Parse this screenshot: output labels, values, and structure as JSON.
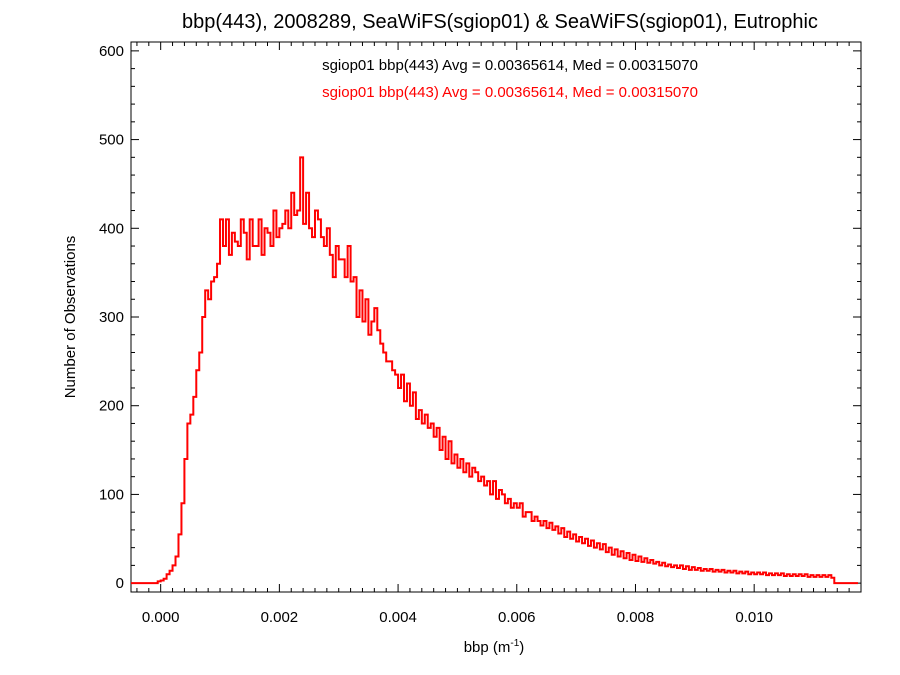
{
  "chart_data": {
    "type": "histogram",
    "title": "bbp(443), 2008289, SeaWiFS(sgiop01) & SeaWiFS(sgiop01), Eutrophic",
    "xlabel_main": "bbp (m",
    "xlabel_sup": "-1",
    "xlabel_end": ")",
    "ylabel": "Number of Observations",
    "xlim": [
      -0.0005,
      0.0118
    ],
    "ylim": [
      -10,
      610
    ],
    "x_ticks": [
      0.0,
      0.002,
      0.004,
      0.006,
      0.008,
      0.01
    ],
    "x_tick_labels": [
      "0.000",
      "0.002",
      "0.004",
      "0.006",
      "0.008",
      "0.010"
    ],
    "y_ticks": [
      0,
      100,
      200,
      300,
      400,
      500,
      600
    ],
    "y_tick_labels": [
      "0",
      "100",
      "200",
      "300",
      "400",
      "500",
      "600"
    ],
    "grid": false,
    "series": [
      {
        "name": "sgiop01 bbp(443) Avg = 0.00365614, Med = 0.00315070",
        "color": "#000000"
      },
      {
        "name": "sgiop01 bbp(443) Avg = 0.00365614, Med = 0.00315070",
        "color": "#ff0000",
        "bin_width": 5e-05,
        "bin_start": -0.0005,
        "counts": [
          0,
          0,
          0,
          0,
          0,
          0,
          0,
          0,
          0,
          2,
          3,
          5,
          10,
          14,
          20,
          30,
          55,
          90,
          140,
          180,
          190,
          210,
          240,
          260,
          300,
          330,
          320,
          340,
          345,
          360,
          410,
          380,
          410,
          370,
          395,
          385,
          380,
          410,
          395,
          365,
          410,
          380,
          380,
          410,
          370,
          400,
          395,
          380,
          420,
          390,
          400,
          405,
          420,
          400,
          440,
          415,
          420,
          480,
          405,
          440,
          400,
          390,
          420,
          410,
          390,
          380,
          400,
          370,
          345,
          380,
          365,
          365,
          345,
          380,
          340,
          345,
          300,
          330,
          295,
          320,
          280,
          295,
          310,
          285,
          270,
          260,
          250,
          250,
          240,
          235,
          220,
          235,
          205,
          225,
          200,
          215,
          185,
          195,
          180,
          190,
          175,
          180,
          165,
          175,
          150,
          165,
          140,
          160,
          135,
          145,
          130,
          140,
          125,
          135,
          120,
          130,
          125,
          115,
          120,
          110,
          115,
          100,
          115,
          95,
          105,
          100,
          90,
          95,
          85,
          90,
          85,
          90,
          75,
          80,
          80,
          70,
          75,
          70,
          65,
          70,
          62,
          68,
          60,
          64,
          56,
          62,
          52,
          58,
          50,
          55,
          47,
          52,
          45,
          50,
          42,
          48,
          40,
          45,
          38,
          44,
          35,
          40,
          32,
          38,
          30,
          36,
          28,
          34,
          26,
          32,
          25,
          30,
          24,
          28,
          23,
          26,
          22,
          24,
          20,
          23,
          19,
          21,
          18,
          20,
          17,
          20,
          16,
          19,
          15,
          18,
          15,
          17,
          14,
          16,
          14,
          16,
          13,
          15,
          13,
          15,
          12,
          14,
          12,
          14,
          11,
          13,
          11,
          13,
          10,
          12,
          10,
          12,
          10,
          12,
          9,
          11,
          9,
          11,
          9,
          11,
          8,
          10,
          8,
          10,
          8,
          10,
          8,
          10,
          7,
          9,
          7,
          9,
          7,
          9,
          7,
          9,
          6,
          0,
          0,
          0,
          0,
          0,
          0,
          0,
          0
        ]
      }
    ]
  }
}
